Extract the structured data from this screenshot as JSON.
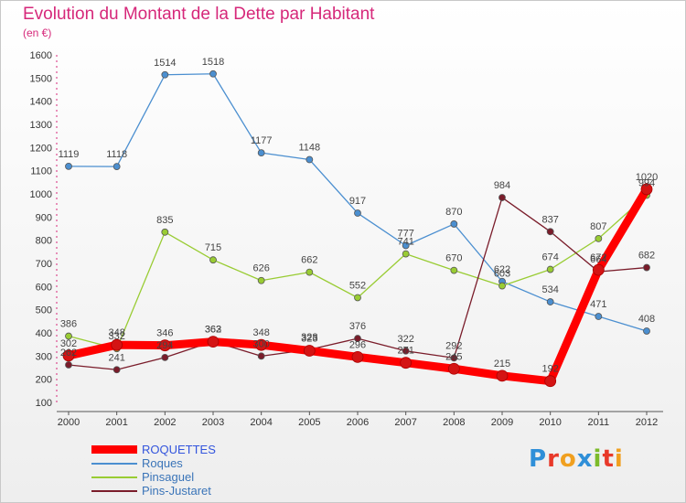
{
  "page": {
    "title": "Evolution du Montant de la Dette par Habitant",
    "subtitle": "(en €)"
  },
  "chart_data": {
    "type": "line",
    "title": "Evolution du Montant de la Dette par Habitant",
    "subtitle": "(en €)",
    "xlabel": "",
    "ylabel": "",
    "x": [
      "2000",
      "2001",
      "2002",
      "2003",
      "2004",
      "2005",
      "2006",
      "2007",
      "2008",
      "2009",
      "2010",
      "2011",
      "2012"
    ],
    "ylim": [
      100,
      1600
    ],
    "yticks": [
      100,
      200,
      300,
      400,
      500,
      600,
      700,
      800,
      900,
      1000,
      1100,
      1200,
      1300,
      1400,
      1500,
      1600
    ],
    "grid": false,
    "legend_position": "bottom-left",
    "series": [
      {
        "name": "Roques",
        "color": "#4b8fd0",
        "values": [
          1119,
          1118,
          1514,
          1518,
          1177,
          1148,
          917,
          777,
          870,
          622,
          534,
          471,
          408
        ]
      },
      {
        "name": "Pinsaguel",
        "color": "#99cc33",
        "values": [
          386,
          332,
          835,
          715,
          626,
          662,
          552,
          741,
          670,
          603,
          674,
          807,
          994
        ]
      },
      {
        "name": "Pins-Justaret",
        "color": "#7a1c2a",
        "values": [
          262,
          241,
          294,
          363,
          300,
          328,
          376,
          322,
          292,
          984,
          837,
          664,
          682
        ]
      },
      {
        "name": "ROQUETTES",
        "color": "#ff0000",
        "values": [
          302,
          348,
          346,
          362,
          348,
          323,
          296,
          271,
          245,
          215,
          192,
          672,
          1020
        ]
      }
    ]
  },
  "legend": {
    "items": [
      {
        "label": "ROQUETTES",
        "color": "#ff0000",
        "text_color": "#3355dd"
      },
      {
        "label": "Roques",
        "color": "#4b8fd0",
        "text_color": "#3a74b8"
      },
      {
        "label": "Pinsaguel",
        "color": "#99cc33",
        "text_color": "#3a74b8"
      },
      {
        "label": "Pins-Justaret",
        "color": "#7a1c2a",
        "text_color": "#3a74b8"
      }
    ]
  },
  "logo": {
    "letters": [
      "P",
      "r",
      "o",
      "x",
      "i",
      "t",
      "i"
    ],
    "colors": [
      "#2f8fd8",
      "#e8392a",
      "#f0a020",
      "#2f8fd8",
      "#7cbb2a",
      "#e8392a",
      "#f0a020"
    ]
  }
}
